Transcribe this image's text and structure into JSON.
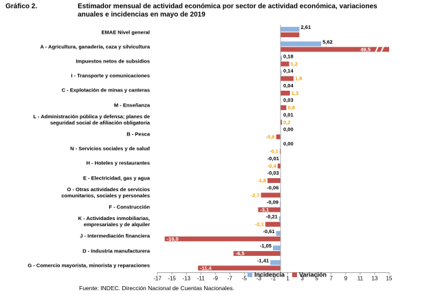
{
  "chart_data": {
    "type": "hbar",
    "label": "Gráfico 2.",
    "title": "Estimador mensual de actividad económica por sector de actividad económica, variaciones anuales e incidencias en mayo de 2019",
    "source": "Fuente: INDEC. Dirección Nacional de Cuentas Nacionales.",
    "categories": [
      "EMAE Nivel general",
      "A -  Agricultura, ganadería, caza y silvicultura",
      "Impuestos netos de subsidios",
      "I - Transporte y comunicaciones",
      "C - Explotación de minas y canteras",
      "M -  Enseñanza",
      "L - Administración pública y defensa; planes de\nseguridad social de afiliación obligatoria",
      "B - Pesca",
      "N - Servicios sociales y de salud",
      "H - Hoteles y restaurantes",
      "E - Electricidad, gas y agua",
      "O - Otras actividades de servicios\ncomunitarios, sociales y personales",
      "F - Construcción",
      "K - Actividades inmobiliarias,\nempresariales y de alquiler",
      "J - Intermediación financiera",
      "D - Industria manufacturera",
      "G - Comercio mayorista, minorista y reparaciones"
    ],
    "series": [
      {
        "name": "Incidencia",
        "color": "#8db3e2",
        "values": [
          2.61,
          5.62,
          0.18,
          0.14,
          0.04,
          0.03,
          0.01,
          0.0,
          0.0,
          -0.01,
          -0.03,
          -0.06,
          -0.09,
          -0.21,
          -0.61,
          -1.05,
          -1.41
        ],
        "value_labels": [
          "2,61",
          "5,62",
          "0,18",
          "0,14",
          "0,04",
          "0,03",
          "0,01",
          "0,00",
          "0,00",
          "-0,01",
          "-0,03",
          "-0,06",
          "-0,09",
          "-0,21",
          "-0,61",
          "-1,05",
          "-1,41"
        ]
      },
      {
        "name": "Variación",
        "color": "#c0504d",
        "values": [
          2.6,
          49.5,
          1.2,
          1.8,
          1.3,
          0.8,
          0.2,
          -0.6,
          -0.1,
          -0.4,
          -1.8,
          -2.7,
          -3.1,
          -2.1,
          -16.0,
          -6.5,
          -11.4
        ],
        "value_labels": [
          null,
          "49,5",
          "1,2",
          "1,8",
          "1,3",
          "0,8",
          "0,2",
          "-0,6",
          "-0,1",
          "-0,4",
          "-1,8",
          "-2,7",
          "-3,1",
          "-2,1",
          "-16,0",
          "-6,5",
          "-11,4"
        ]
      }
    ],
    "xlim": [
      -17,
      15
    ],
    "xticks": [
      -17,
      -15,
      -13,
      -11,
      -9,
      -7,
      -5,
      -3,
      -1,
      1,
      3,
      5,
      7,
      9,
      11,
      13,
      15
    ]
  }
}
